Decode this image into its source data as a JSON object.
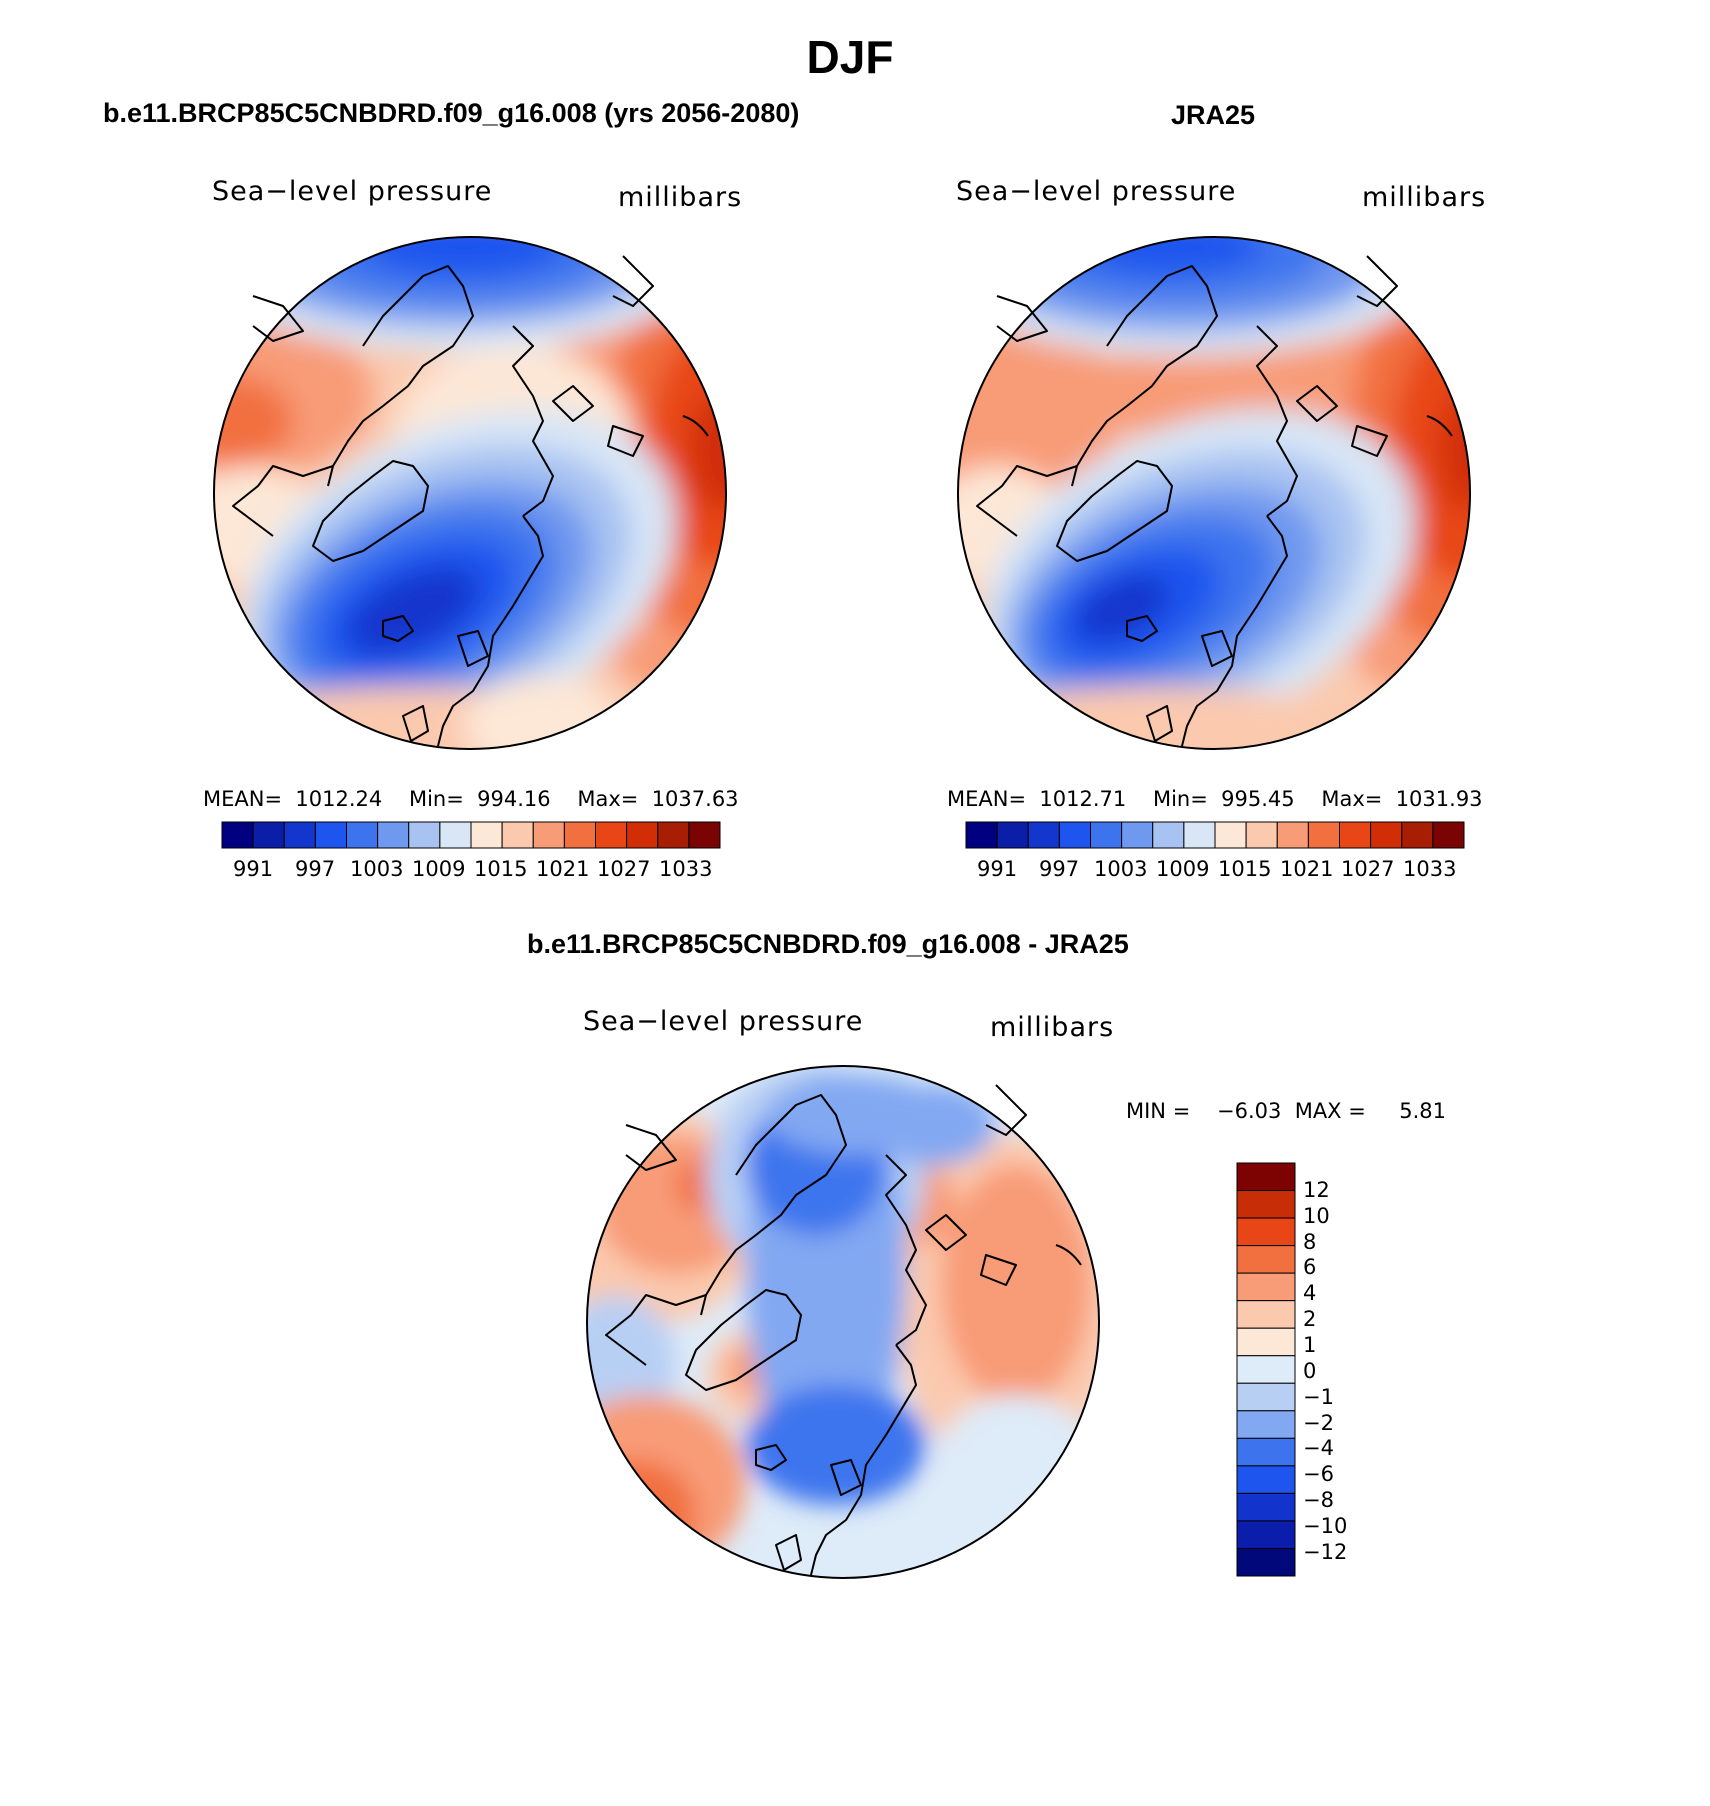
{
  "title": "DJF",
  "colors": {
    "abs_palette": [
      "#000080",
      "#0a1ea8",
      "#1336cc",
      "#1e55ee",
      "#3d74ee",
      "#6f98ef",
      "#a8c3f2",
      "#d8e6f6",
      "#fde7d6",
      "#fbc9ae",
      "#f89b77",
      "#f2703f",
      "#e84617",
      "#d12e07",
      "#a81e04",
      "#7a0404"
    ],
    "diff_palette": [
      "#00087a",
      "#0b1eab",
      "#1233cc",
      "#1e55ee",
      "#3d74ee",
      "#82a8f2",
      "#b8cff4",
      "#deebf8",
      "#fde7d6",
      "#fbc9ae",
      "#f89b77",
      "#f2703f",
      "#e84617",
      "#c72d06",
      "#7d0303"
    ]
  },
  "panels": [
    {
      "title": "b.e11.BRCP85C5CNBDRD.f09_g16.008 (yrs 2056-2080)",
      "field_label": "Sea−level pressure",
      "unit_label": "millibars",
      "stats": "MEAN=  1012.24    Min=  994.16    Max=  1037.63",
      "ticks": [
        "991",
        "997",
        "1003",
        "1009",
        "1015",
        "1021",
        "1027",
        "1033"
      ]
    },
    {
      "title": "JRA25",
      "field_label": "Sea−level pressure",
      "unit_label": "millibars",
      "stats": "MEAN=  1012.71    Min=  995.45    Max=  1031.93",
      "ticks": [
        "991",
        "997",
        "1003",
        "1009",
        "1015",
        "1021",
        "1027",
        "1033"
      ]
    }
  ],
  "diff_panel": {
    "title": "b.e11.BRCP85C5CNBDRD.f09_g16.008 - JRA25",
    "field_label": "Sea−level pressure",
    "unit_label": "millibars",
    "stats": "MIN =    −6.03  MAX =     5.81",
    "ticks": [
      "12",
      "10",
      "8",
      "6",
      "4",
      "2",
      "1",
      "0",
      "−1",
      "−2",
      "−4",
      "−6",
      "−8",
      "−10",
      "−12"
    ]
  }
}
